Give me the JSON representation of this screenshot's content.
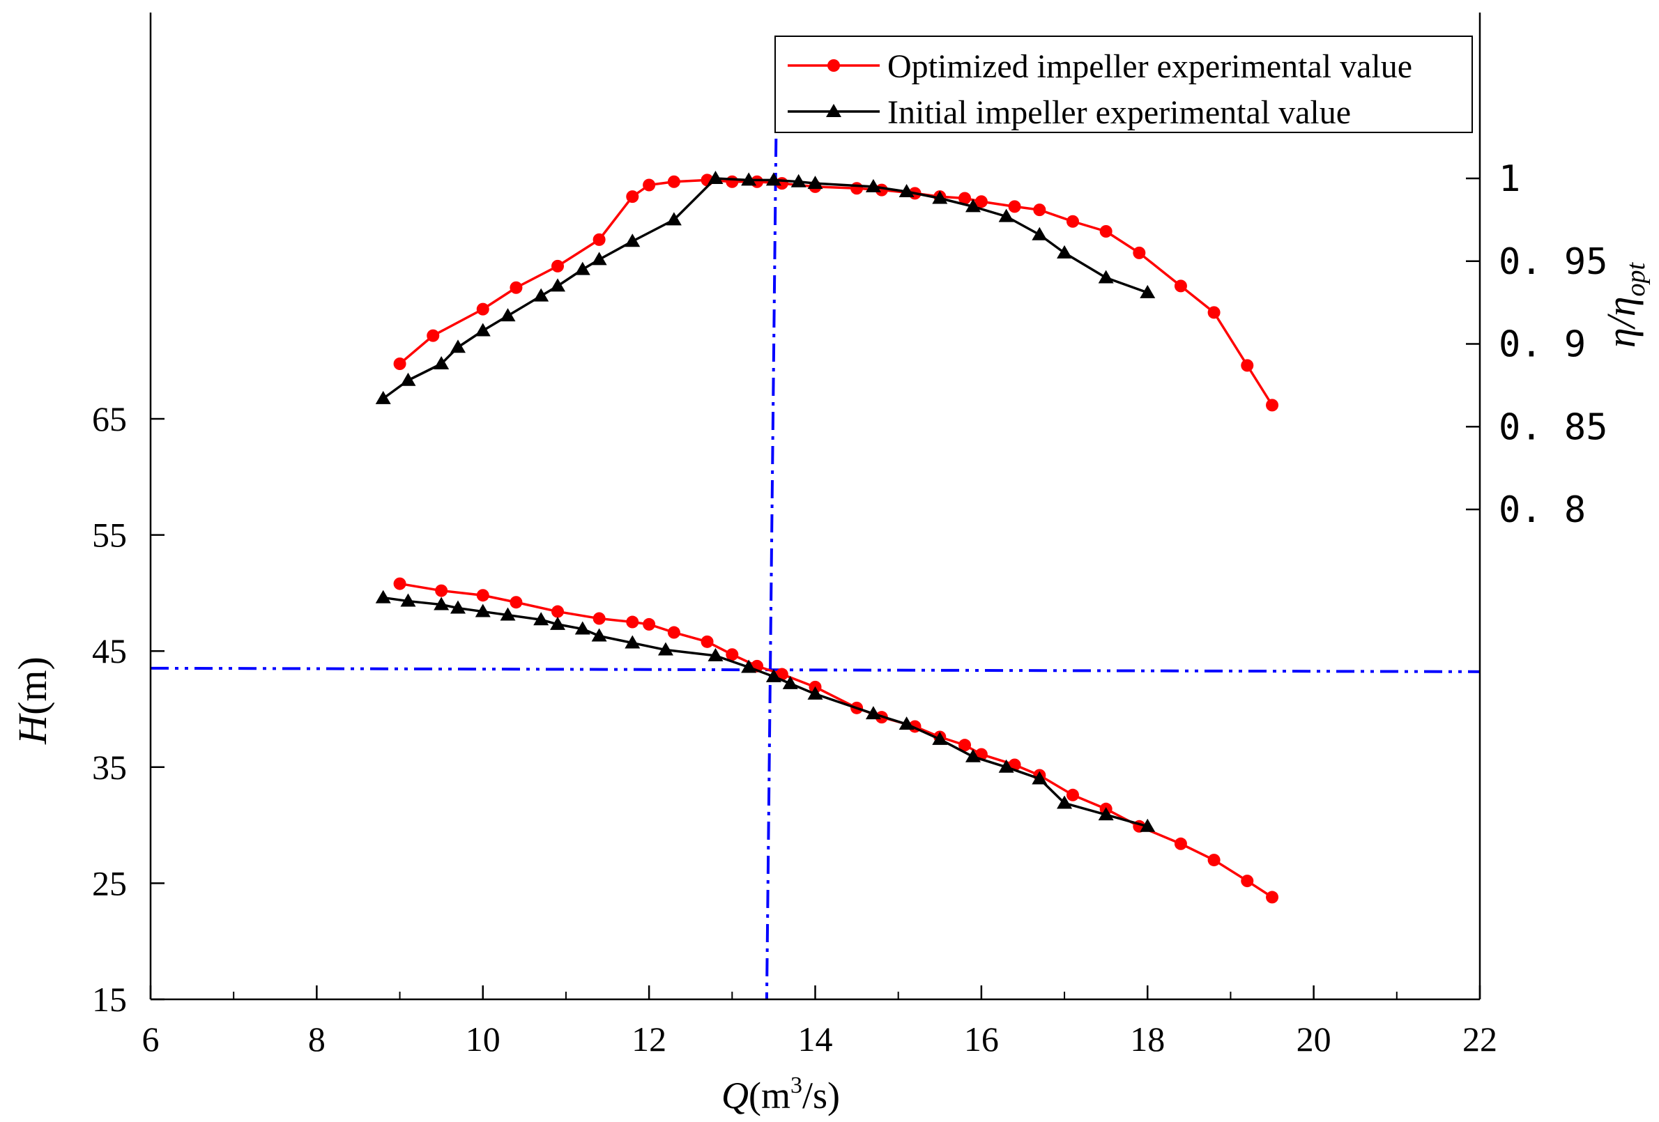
{
  "chart_data": {
    "type": "line",
    "x_axis": {
      "label_var": "Q",
      "label_unit_pre": "(m",
      "label_unit_sup": "3",
      "label_unit_post": "/s)",
      "range": [
        6,
        22
      ],
      "ticks": [
        6,
        8,
        10,
        12,
        14,
        16,
        18,
        20,
        22
      ],
      "tick_labels": [
        "6",
        "8",
        "10",
        "12",
        "14",
        "16",
        "18",
        "20",
        "22"
      ],
      "minor_ticks": [
        7,
        9,
        11,
        13,
        15,
        17,
        19,
        21
      ]
    },
    "y_left": {
      "label_var": "H",
      "label_unit": "(m)",
      "range": [
        15,
        100
      ],
      "ticks": [
        15,
        25,
        35,
        45,
        55,
        65
      ],
      "tick_labels": [
        "15",
        "25",
        "35",
        "45",
        "55",
        "65"
      ]
    },
    "y_right": {
      "label": "η/η",
      "label_sub": "opt",
      "ticks": [
        0.8,
        0.85,
        0.9,
        0.95,
        1.0
      ],
      "tick_labels": [
        "0.8",
        "0.85",
        "0.9",
        "0.95",
        "1"
      ],
      "tick_label_text": [
        "0. 8",
        "0. 85",
        "0. 9",
        "0. 95",
        "1"
      ]
    },
    "reference_lines": {
      "vertical_q": 13.5,
      "horizontal_h": 43.4,
      "color": "#0000ff",
      "style": "dash-dot"
    },
    "legend": {
      "position": "top-right",
      "entries": [
        "Optimized impeller experimental value",
        "Initial impeller experimental value"
      ]
    },
    "series": [
      {
        "name": "Optimized impeller experimental value",
        "kind": "head",
        "axis": "left",
        "color": "#ff0000",
        "marker": "circle",
        "x": [
          9.0,
          9.5,
          10.0,
          10.4,
          10.9,
          11.4,
          11.8,
          12.0,
          12.3,
          12.7,
          13.0,
          13.3,
          13.6,
          14.0,
          14.5,
          14.8,
          15.2,
          15.5,
          15.8,
          16.0,
          16.4,
          16.7,
          17.1,
          17.5,
          17.9,
          18.4,
          18.8,
          19.2,
          19.5
        ],
        "values": [
          50.8,
          50.2,
          49.8,
          49.2,
          48.4,
          47.8,
          47.5,
          47.3,
          46.6,
          45.8,
          44.7,
          43.7,
          43.0,
          41.9,
          40.1,
          39.3,
          38.5,
          37.6,
          36.9,
          36.1,
          35.2,
          34.3,
          32.6,
          31.4,
          29.9,
          28.4,
          27.0,
          25.2,
          23.8
        ]
      },
      {
        "name": "Initial impeller experimental value",
        "kind": "head",
        "axis": "left",
        "color": "#000000",
        "marker": "triangle",
        "x": [
          8.8,
          9.1,
          9.5,
          9.7,
          10.0,
          10.3,
          10.7,
          10.9,
          11.2,
          11.4,
          11.8,
          12.2,
          12.8,
          13.2,
          13.5,
          13.7,
          14.0,
          14.7,
          15.1,
          15.5,
          15.9,
          16.3,
          16.7,
          17.0,
          17.5,
          18.0
        ],
        "values": [
          49.6,
          49.3,
          49.0,
          48.7,
          48.4,
          48.1,
          47.7,
          47.3,
          46.9,
          46.3,
          45.7,
          45.1,
          44.6,
          43.6,
          42.8,
          42.2,
          41.3,
          39.6,
          38.7,
          37.4,
          35.9,
          35.0,
          34.0,
          31.9,
          30.9,
          29.9
        ]
      },
      {
        "name": "Optimized impeller experimental value",
        "kind": "efficiency",
        "axis": "right",
        "color": "#ff0000",
        "marker": "circle",
        "x": [
          9.0,
          9.4,
          10.0,
          10.4,
          10.9,
          11.4,
          11.8,
          12.0,
          12.3,
          12.7,
          13.0,
          13.3,
          13.6,
          14.0,
          14.5,
          14.8,
          15.2,
          15.5,
          15.8,
          16.0,
          16.4,
          16.7,
          17.1,
          17.5,
          17.9,
          18.4,
          18.8,
          19.2,
          19.5
        ],
        "values": [
          0.888,
          0.905,
          0.921,
          0.934,
          0.947,
          0.963,
          0.989,
          0.996,
          0.998,
          0.999,
          0.998,
          0.998,
          0.997,
          0.995,
          0.994,
          0.993,
          0.991,
          0.989,
          0.988,
          0.986,
          0.983,
          0.981,
          0.974,
          0.968,
          0.955,
          0.935,
          0.919,
          0.887,
          0.863
        ]
      },
      {
        "name": "Initial impeller experimental value",
        "kind": "efficiency",
        "axis": "right",
        "color": "#000000",
        "marker": "triangle",
        "x": [
          8.8,
          9.1,
          9.5,
          9.7,
          10.0,
          10.3,
          10.7,
          10.9,
          11.2,
          11.4,
          11.8,
          12.3,
          12.8,
          13.2,
          13.5,
          13.8,
          14.0,
          14.7,
          15.1,
          15.5,
          15.9,
          16.3,
          16.7,
          17.0,
          17.5,
          18.0
        ],
        "values": [
          0.867,
          0.878,
          0.888,
          0.898,
          0.908,
          0.917,
          0.929,
          0.935,
          0.945,
          0.951,
          0.962,
          0.975,
          1.0,
          0.999,
          0.999,
          0.998,
          0.997,
          0.995,
          0.992,
          0.988,
          0.983,
          0.977,
          0.966,
          0.955,
          0.94,
          0.931
        ]
      }
    ]
  }
}
